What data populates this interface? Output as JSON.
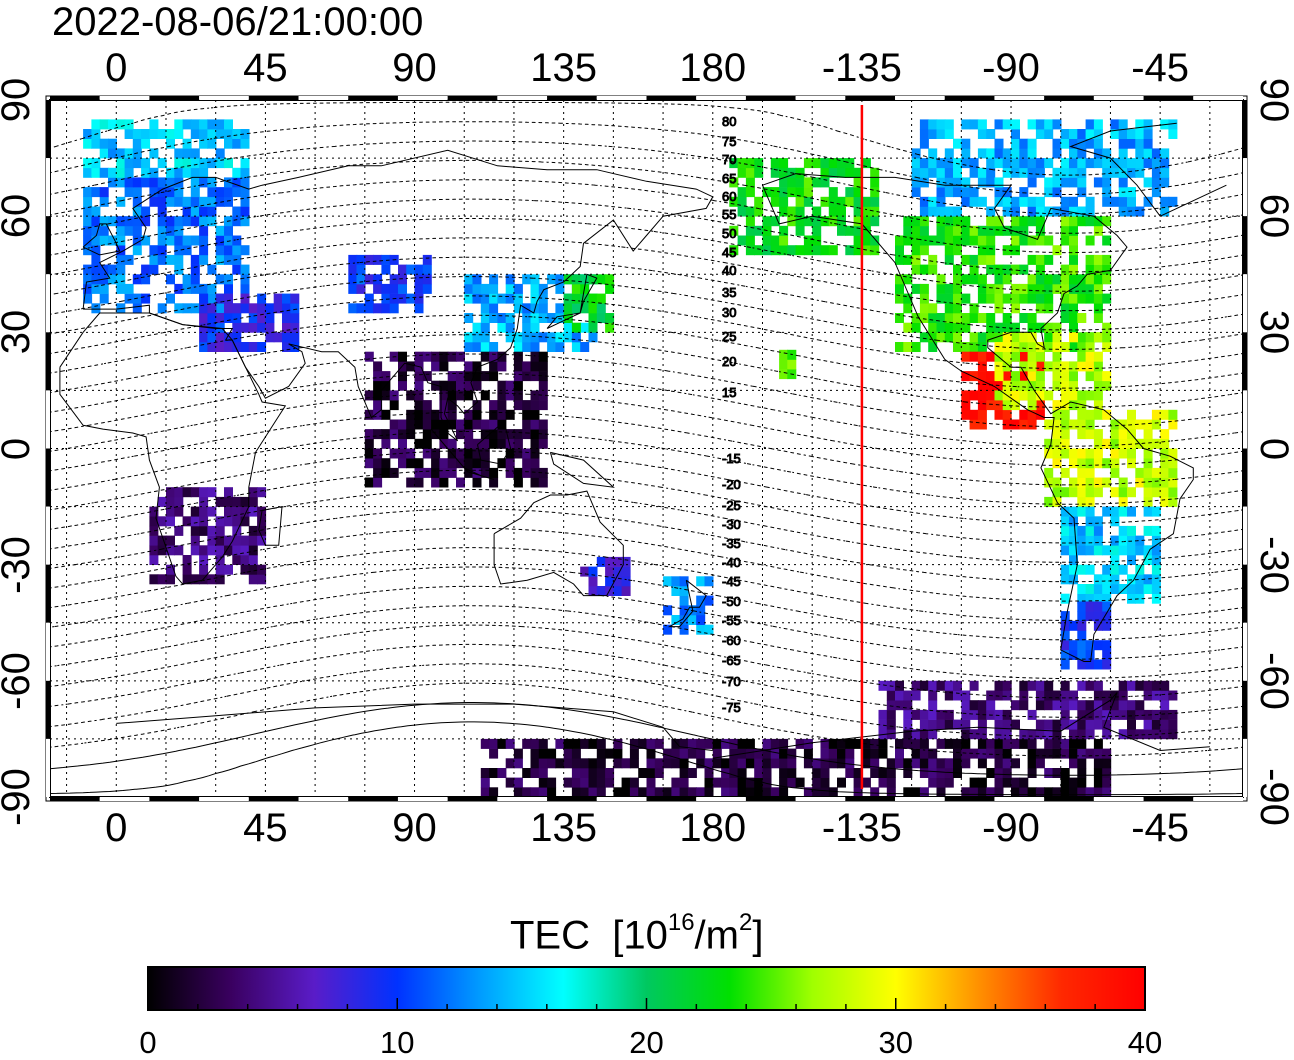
{
  "timestamp": "2022-08-06/21:00:00",
  "map": {
    "projection": "equirectangular",
    "center_longitude": 160,
    "lon_range": [
      -20,
      340
    ],
    "lat_range": [
      -90,
      90
    ],
    "lon_ticks": [
      "0",
      "45",
      "90",
      "135",
      "180",
      "-135",
      "-90",
      "-45"
    ],
    "lat_ticks": [
      "90",
      "60",
      "30",
      "0",
      "-30",
      "-60",
      "-90"
    ],
    "grid": "dotted 15 degree",
    "red_meridian_lon": -135,
    "contour_labels": [
      "80",
      "75",
      "70",
      "65",
      "60",
      "55",
      "50",
      "45",
      "40",
      "35",
      "30",
      "25",
      "20",
      "15",
      "-15",
      "-20",
      "-25",
      "-30",
      "-35",
      "-40",
      "-45",
      "-50",
      "-55",
      "-60",
      "-65",
      "-70",
      "-75"
    ]
  },
  "colorbar": {
    "title": "TEC",
    "unit_base": "[10",
    "unit_exp1": "16",
    "unit_mid": "/m",
    "unit_exp2": "2",
    "unit_end": "]",
    "min": 0,
    "max": 40,
    "ticks": [
      "0",
      "10",
      "20",
      "30",
      "40"
    ],
    "colors": [
      "#000000",
      "#3a0060",
      "#5a1cc8",
      "#0032ff",
      "#009cff",
      "#00ffff",
      "#00c860",
      "#00e000",
      "#a0ff00",
      "#ffff00",
      "#ff9000",
      "#ff2800",
      "#ff0000"
    ]
  },
  "tec_regions": [
    {
      "name": "north-america",
      "lon": [
        -125,
        -60
      ],
      "lat": [
        25,
        60
      ],
      "tec": 24
    },
    {
      "name": "canada-arctic",
      "lon": [
        -120,
        -40
      ],
      "lat": [
        60,
        85
      ],
      "tec": 14
    },
    {
      "name": "alaska",
      "lon": [
        -175,
        -130
      ],
      "lat": [
        50,
        75
      ],
      "tec": 23
    },
    {
      "name": "central-america",
      "lon": [
        -105,
        -80
      ],
      "lat": [
        5,
        25
      ],
      "tec": 39
    },
    {
      "name": "caribbean",
      "lon": [
        -95,
        -60
      ],
      "lat": [
        10,
        30
      ],
      "tec": 28
    },
    {
      "name": "south-america-north",
      "lon": [
        -80,
        -40
      ],
      "lat": [
        -15,
        8
      ],
      "tec": 28
    },
    {
      "name": "south-america-mid",
      "lon": [
        -75,
        -45
      ],
      "lat": [
        -40,
        -15
      ],
      "tec": 15
    },
    {
      "name": "south-america-south",
      "lon": [
        -75,
        -60
      ],
      "lat": [
        -57,
        -40
      ],
      "tec": 10
    },
    {
      "name": "antarctica",
      "lon": [
        110,
        300
      ],
      "lat": [
        -90,
        -75
      ],
      "tec": 2
    },
    {
      "name": "southern-ocean",
      "lon": [
        -130,
        -40
      ],
      "lat": [
        -75,
        -60
      ],
      "tec": 4
    },
    {
      "name": "europe",
      "lon": [
        -10,
        40
      ],
      "lat": [
        35,
        70
      ],
      "tec": 12
    },
    {
      "name": "arctic-europe",
      "lon": [
        -10,
        40
      ],
      "lat": [
        70,
        85
      ],
      "tec": 15
    },
    {
      "name": "middle-east",
      "lon": [
        25,
        55
      ],
      "lat": [
        25,
        40
      ],
      "tec": 9
    },
    {
      "name": "east-asia",
      "lon": [
        105,
        145
      ],
      "lat": [
        25,
        45
      ],
      "tec": 14
    },
    {
      "name": "japan-east",
      "lon": [
        135,
        150
      ],
      "lat": [
        30,
        45
      ],
      "tec": 22
    },
    {
      "name": "central-asia",
      "lon": [
        70,
        95
      ],
      "lat": [
        35,
        50
      ],
      "tec": 10
    },
    {
      "name": "south-asia",
      "lon": [
        75,
        130
      ],
      "lat": [
        -10,
        25
      ],
      "tec": 2
    },
    {
      "name": "africa-south",
      "lon": [
        10,
        45
      ],
      "lat": [
        -35,
        -10
      ],
      "tec": 4
    },
    {
      "name": "new-zealand",
      "lon": [
        165,
        180
      ],
      "lat": [
        -48,
        -35
      ],
      "tec": 13
    },
    {
      "name": "hawaii",
      "lon": [
        -160,
        -155
      ],
      "lat": [
        18,
        25
      ],
      "tec": 24
    },
    {
      "name": "australia-east",
      "lon": [
        140,
        155
      ],
      "lat": [
        -38,
        -28
      ],
      "tec": 8
    }
  ]
}
